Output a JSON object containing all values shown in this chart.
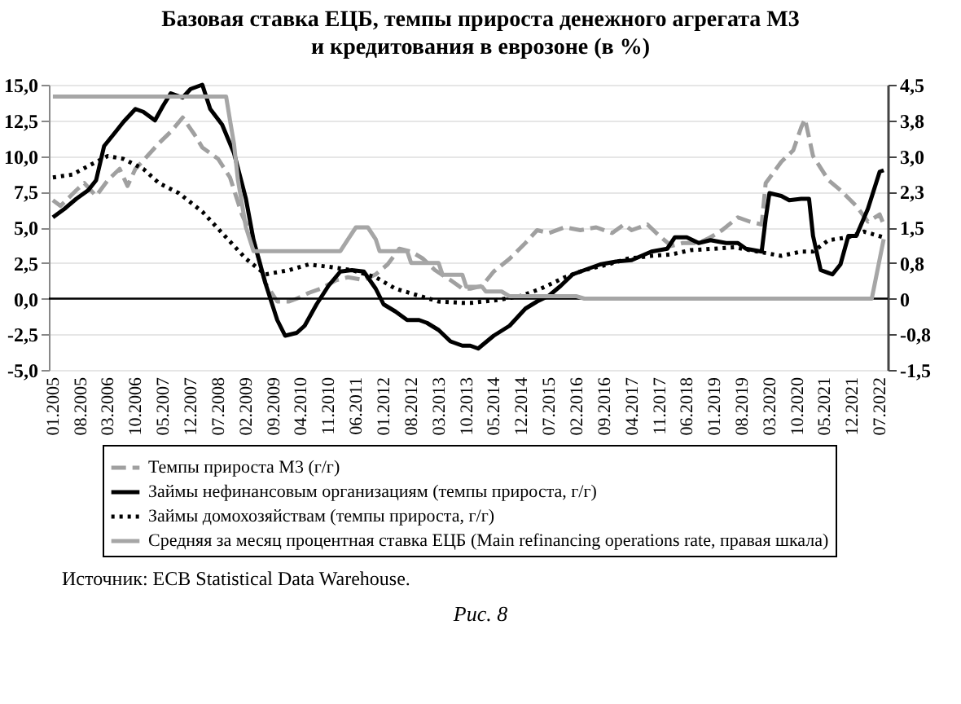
{
  "chart_data": {
    "type": "line",
    "title": "Базовая ставка ЕЦБ, темпы прироста денежного агрегата М3\nи кредитования в еврозоне (в %)",
    "annotations": [
      "Источник: ECB Statistical Data Warehouse.",
      "Рис. 8"
    ],
    "xlim": [
      "2004-12",
      "2022-09"
    ],
    "xticks": [
      {
        "value": "2005-01",
        "label": "01.2005"
      },
      {
        "value": "2005-08",
        "label": "08.2005"
      },
      {
        "value": "2006-03",
        "label": "03.2006"
      },
      {
        "value": "2006-10",
        "label": "10.2006"
      },
      {
        "value": "2007-05",
        "label": "05.2007"
      },
      {
        "value": "2007-12",
        "label": "12.2007"
      },
      {
        "value": "2008-07",
        "label": "07.2008"
      },
      {
        "value": "2009-02",
        "label": "02.2009"
      },
      {
        "value": "2009-09",
        "label": "09.2009"
      },
      {
        "value": "2010-04",
        "label": "04.2010"
      },
      {
        "value": "2010-11",
        "label": "11.2010"
      },
      {
        "value": "2011-06",
        "label": "06.2011"
      },
      {
        "value": "2012-01",
        "label": "01.2012"
      },
      {
        "value": "2012-08",
        "label": "08.2012"
      },
      {
        "value": "2013-03",
        "label": "03.2013"
      },
      {
        "value": "2013-10",
        "label": "10.2013"
      },
      {
        "value": "2014-05",
        "label": "05.2014"
      },
      {
        "value": "2014-12",
        "label": "12.2014"
      },
      {
        "value": "2015-07",
        "label": "07.2015"
      },
      {
        "value": "2016-02",
        "label": "02.2016"
      },
      {
        "value": "2016-09",
        "label": "09.2016"
      },
      {
        "value": "2017-04",
        "label": "04.2017"
      },
      {
        "value": "2017-11",
        "label": "11.2017"
      },
      {
        "value": "2018-06",
        "label": "06.2018"
      },
      {
        "value": "2019-01",
        "label": "01.2019"
      },
      {
        "value": "2019-08",
        "label": "08.2019"
      },
      {
        "value": "2020-03",
        "label": "03.2020"
      },
      {
        "value": "2020-10",
        "label": "10.2020"
      },
      {
        "value": "2021-05",
        "label": "05.2021"
      },
      {
        "value": "2021-12",
        "label": "12.2021"
      },
      {
        "value": "2022-07",
        "label": "07.2022"
      }
    ],
    "ylim": [
      -5,
      15
    ],
    "yticks": [
      {
        "value": -5,
        "label": "-5,0"
      },
      {
        "value": -2.5,
        "label": "-2,5"
      },
      {
        "value": 0,
        "label": "0,0"
      },
      {
        "value": 2.5,
        "label": "2,5"
      },
      {
        "value": 5,
        "label": "5,0"
      },
      {
        "value": 7.5,
        "label": "7,5"
      },
      {
        "value": 10,
        "label": "10,0"
      },
      {
        "value": 12.5,
        "label": "12,5"
      },
      {
        "value": 15,
        "label": "15,0"
      }
    ],
    "y2lim": [
      -1.5,
      4.5
    ],
    "y2ticks": [
      {
        "value": -1.5,
        "label": "-1,5"
      },
      {
        "value": -0.75,
        "label": "-0,8"
      },
      {
        "value": 0,
        "label": "0"
      },
      {
        "value": 0.75,
        "label": "0,8"
      },
      {
        "value": 1.5,
        "label": "1,5"
      },
      {
        "value": 2.25,
        "label": "2,3"
      },
      {
        "value": 3,
        "label": "3,0"
      },
      {
        "value": 3.75,
        "label": "3,8"
      },
      {
        "value": 4.5,
        "label": "4,5"
      }
    ],
    "grid": "y",
    "legend": "bottom",
    "marker": "none",
    "ref_lines": [
      {
        "axis": "y",
        "value": 0,
        "color": "#000000"
      }
    ],
    "series": [
      {
        "name": "Темпы прироста М3 (г/г)",
        "color": "#a0a0a0",
        "line_style": "dashed",
        "x": [
          "2005-01",
          "2005-03",
          "2005-07",
          "2005-09",
          "2005-12",
          "2006-03",
          "2006-06",
          "2006-08",
          "2006-10",
          "2007-01",
          "2007-04",
          "2007-07",
          "2007-10",
          "2008-01",
          "2008-03",
          "2008-07",
          "2008-10",
          "2009-01",
          "2009-04",
          "2009-07",
          "2009-10",
          "2010-01",
          "2010-03",
          "2010-06",
          "2010-09",
          "2011-01",
          "2011-04",
          "2011-08",
          "2011-11",
          "2012-02",
          "2012-05",
          "2012-08",
          "2012-11",
          "2013-02",
          "2013-06",
          "2013-09",
          "2013-11",
          "2014-02",
          "2014-05",
          "2014-09",
          "2015-01",
          "2015-04",
          "2015-07",
          "2015-11",
          "2016-03",
          "2016-07",
          "2016-11",
          "2017-02",
          "2017-04",
          "2017-08",
          "2017-11",
          "2018-02",
          "2018-05",
          "2018-09",
          "2018-12",
          "2019-03",
          "2019-07",
          "2019-10",
          "2020-01",
          "2020-02",
          "2020-06",
          "2020-09",
          "2020-11",
          "2020-12",
          "2021-02",
          "2021-06",
          "2021-09",
          "2022-01",
          "2022-04",
          "2022-07",
          "2022-08"
        ],
        "values": [
          6.9,
          6.5,
          7.6,
          8.1,
          7.2,
          8.3,
          9.1,
          7.9,
          9.1,
          10.0,
          10.9,
          11.7,
          12.7,
          11.5,
          10.6,
          9.8,
          8.5,
          5.9,
          4.1,
          1.1,
          -0.2,
          -0.2,
          0.0,
          0.4,
          0.7,
          1.3,
          1.5,
          1.3,
          1.7,
          2.4,
          3.5,
          3.3,
          2.8,
          2.0,
          1.3,
          0.7,
          0.7,
          0.9,
          1.9,
          2.8,
          3.9,
          4.8,
          4.6,
          5.0,
          4.8,
          5.0,
          4.6,
          5.2,
          4.8,
          5.2,
          4.4,
          3.7,
          3.9,
          3.9,
          4.3,
          4.8,
          5.7,
          5.4,
          5.2,
          8.1,
          9.6,
          10.4,
          12.0,
          12.6,
          10.0,
          8.3,
          7.6,
          6.5,
          5.4,
          5.9,
          5.2
        ]
      },
      {
        "name": "Займы нефинансовым организациям (темпы прироста, г/г)",
        "color": "#000000",
        "line_style": "solid",
        "x": [
          "2005-01",
          "2005-04",
          "2005-07",
          "2005-10",
          "2005-12",
          "2006-02",
          "2006-05",
          "2006-07",
          "2006-10",
          "2006-12",
          "2007-03",
          "2007-05",
          "2007-07",
          "2007-10",
          "2007-12",
          "2008-03",
          "2008-05",
          "2008-08",
          "2008-11",
          "2009-02",
          "2009-04",
          "2009-07",
          "2009-10",
          "2009-12",
          "2010-03",
          "2010-05",
          "2010-08",
          "2010-11",
          "2011-02",
          "2011-05",
          "2011-08",
          "2011-11",
          "2012-01",
          "2012-04",
          "2012-07",
          "2012-10",
          "2012-12",
          "2013-03",
          "2013-06",
          "2013-09",
          "2013-11",
          "2014-01",
          "2014-05",
          "2014-09",
          "2015-01",
          "2015-04",
          "2015-07",
          "2015-10",
          "2016-01",
          "2016-04",
          "2016-08",
          "2016-12",
          "2017-04",
          "2017-09",
          "2018-01",
          "2018-03",
          "2018-06",
          "2018-09",
          "2018-12",
          "2019-04",
          "2019-07",
          "2019-09",
          "2020-01",
          "2020-02",
          "2020-03",
          "2020-06",
          "2020-08",
          "2020-11",
          "2021-01",
          "2021-02",
          "2021-04",
          "2021-07",
          "2021-09",
          "2021-11",
          "2022-01",
          "2022-04",
          "2022-07",
          "2022-08"
        ],
        "values": [
          5.7,
          6.3,
          7.0,
          7.6,
          8.3,
          10.7,
          11.7,
          12.4,
          13.3,
          13.1,
          12.5,
          13.5,
          14.4,
          14.1,
          14.7,
          15.0,
          13.3,
          12.2,
          10.2,
          7.0,
          4.1,
          1.1,
          -1.5,
          -2.6,
          -2.4,
          -1.9,
          -0.4,
          0.9,
          1.9,
          2.0,
          1.9,
          0.7,
          -0.4,
          -0.9,
          -1.5,
          -1.5,
          -1.7,
          -2.2,
          -3.0,
          -3.3,
          -3.3,
          -3.5,
          -2.6,
          -1.9,
          -0.7,
          -0.2,
          0.2,
          0.9,
          1.7,
          2.0,
          2.4,
          2.6,
          2.7,
          3.3,
          3.5,
          4.3,
          4.3,
          3.9,
          4.1,
          3.9,
          3.9,
          3.5,
          3.3,
          5.6,
          7.4,
          7.2,
          6.9,
          7.0,
          7.0,
          4.4,
          2.0,
          1.7,
          2.4,
          4.4,
          4.4,
          6.3,
          8.9,
          9.0
        ]
      },
      {
        "name": "Займы домохозяйствам (темпы прироста, г/г)",
        "color": "#000000",
        "line_style": "dotted",
        "x": [
          "2005-01",
          "2005-06",
          "2005-10",
          "2006-03",
          "2006-07",
          "2006-12",
          "2007-04",
          "2007-09",
          "2008-03",
          "2008-08",
          "2009-02",
          "2009-07",
          "2010-01",
          "2010-06",
          "2010-12",
          "2011-05",
          "2011-11",
          "2012-04",
          "2012-10",
          "2013-03",
          "2013-09",
          "2013-11",
          "2014-06",
          "2014-12",
          "2015-05",
          "2015-11",
          "2016-04",
          "2016-10",
          "2017-03",
          "2017-09",
          "2018-02",
          "2018-07",
          "2019-01",
          "2019-06",
          "2019-12",
          "2020-06",
          "2020-11",
          "2021-02",
          "2021-06",
          "2021-11",
          "2022-03",
          "2022-08"
        ],
        "values": [
          8.5,
          8.7,
          9.3,
          10.0,
          9.8,
          9.1,
          8.1,
          7.4,
          6.1,
          4.6,
          2.8,
          1.7,
          2.0,
          2.4,
          2.2,
          2.0,
          1.5,
          0.7,
          0.2,
          -0.2,
          -0.3,
          -0.3,
          -0.1,
          0.2,
          0.7,
          1.5,
          2.0,
          2.4,
          2.8,
          3.0,
          3.1,
          3.4,
          3.5,
          3.6,
          3.3,
          3.0,
          3.3,
          3.3,
          4.1,
          4.3,
          4.7,
          4.3
        ]
      },
      {
        "name": "Средняя за месяц процентная ставка ЕЦБ (Main refinancing operations rate, правая шкала)",
        "color": "#a6a6a6",
        "line_style": "solid",
        "axis": "y2",
        "x": [
          "2005-01",
          "2008-09",
          "2008-10",
          "2008-11",
          "2008-12",
          "2009-01",
          "2009-02",
          "2009-04",
          "2011-02",
          "2011-04",
          "2011-06",
          "2011-09",
          "2011-11",
          "2011-12",
          "2012-07",
          "2012-08",
          "2013-03",
          "2013-04",
          "2013-09",
          "2013-10",
          "2014-02",
          "2014-03",
          "2014-07",
          "2014-09",
          "2016-02",
          "2016-04",
          "2022-05",
          "2022-08"
        ],
        "values": [
          4.25,
          4.25,
          3.75,
          3.25,
          2.5,
          2.0,
          1.5,
          1.0,
          1.0,
          1.25,
          1.5,
          1.5,
          1.25,
          1.0,
          1.0,
          0.75,
          0.75,
          0.5,
          0.5,
          0.25,
          0.25,
          0.15,
          0.15,
          0.05,
          0.05,
          0.0,
          0.0,
          1.25
        ]
      }
    ]
  }
}
